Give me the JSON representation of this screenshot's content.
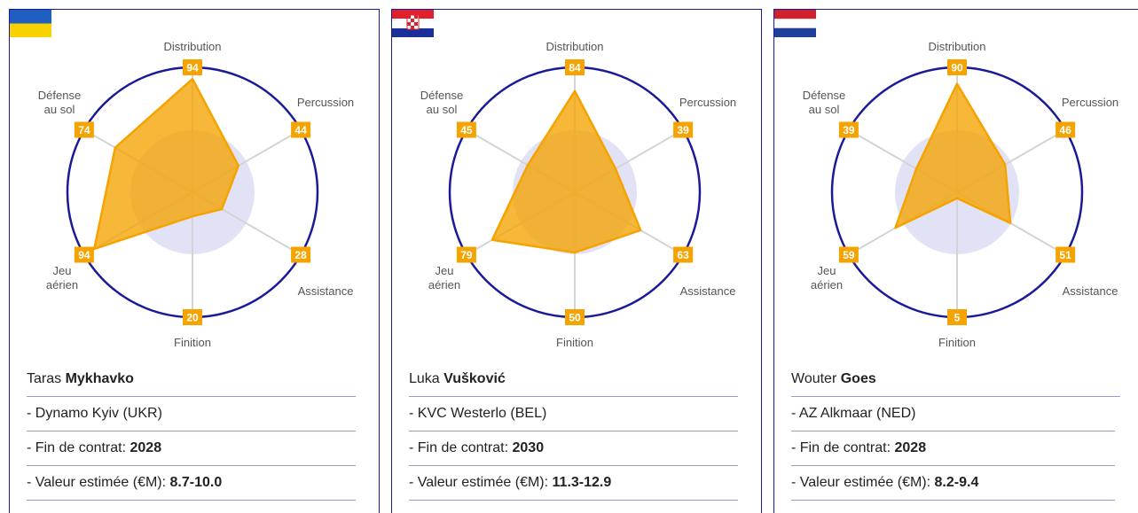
{
  "chart_data": [
    {
      "type": "radar",
      "categories": [
        [
          "Distribution"
        ],
        [
          "Percussion"
        ],
        [
          "Assistance"
        ],
        [
          "Finition"
        ],
        [
          "Jeu",
          "aérien"
        ],
        [
          "Défense",
          "au sol"
        ]
      ],
      "values": [
        94,
        44,
        28,
        20,
        94,
        74
      ],
      "rlim": [
        0,
        100
      ],
      "color": "#f5a300"
    },
    {
      "type": "radar",
      "categories": [
        [
          "Distribution"
        ],
        [
          "Percussion"
        ],
        [
          "Assistance"
        ],
        [
          "Finition"
        ],
        [
          "Jeu",
          "aérien"
        ],
        [
          "Défense",
          "au sol"
        ]
      ],
      "values": [
        84,
        39,
        63,
        50,
        79,
        45
      ],
      "rlim": [
        0,
        100
      ],
      "color": "#f5a300"
    },
    {
      "type": "radar",
      "categories": [
        [
          "Distribution"
        ],
        [
          "Percussion"
        ],
        [
          "Assistance"
        ],
        [
          "Finition"
        ],
        [
          "Jeu",
          "aérien"
        ],
        [
          "Défense",
          "au sol"
        ]
      ],
      "values": [
        90,
        46,
        51,
        5,
        59,
        39
      ],
      "rlim": [
        0,
        100
      ],
      "color": "#f5a300"
    }
  ],
  "cards": [
    {
      "first": "Taras",
      "last": "Mykhavko",
      "club": "- Dynamo Kyiv (UKR)",
      "contract_label": "- Fin de contrat:",
      "contract": "2028",
      "value_label": "- Valeur estimée (€M):",
      "value": "8.7-10.0"
    },
    {
      "first": "Luka",
      "last": "Vušković",
      "club": "- KVC Westerlo (BEL)",
      "contract_label": "- Fin de contrat:",
      "contract": "2030",
      "value_label": "- Valeur estimée (€M):",
      "value": "11.3-12.9"
    },
    {
      "first": "Wouter",
      "last": "Goes",
      "club": "- AZ Alkmaar (NED)",
      "contract_label": "- Fin de contrat:",
      "contract": "2028",
      "value_label": "- Valeur estimée (€M):",
      "value": "8.2-9.4"
    }
  ]
}
